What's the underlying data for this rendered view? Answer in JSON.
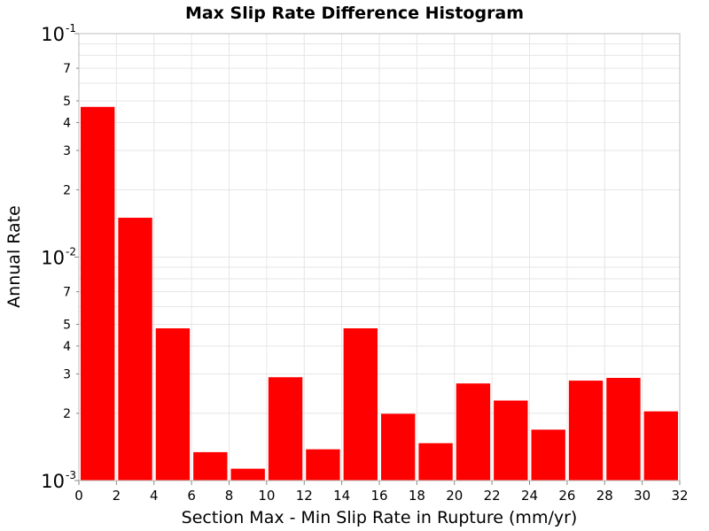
{
  "chart_data": {
    "type": "bar",
    "title": "Max Slip Rate Difference Histogram",
    "xlabel": "Section Max - Min Slip Rate in Rupture (mm/yr)",
    "ylabel": "Annual Rate",
    "xlim": [
      0,
      32
    ],
    "ylim": [
      0.001,
      0.1
    ],
    "yscale": "log",
    "bin_width": 2,
    "bar_color": "#ff0000",
    "grid": true,
    "x_ticks": [
      "0",
      "2",
      "4",
      "6",
      "8",
      "10",
      "12",
      "14",
      "16",
      "18",
      "20",
      "22",
      "24",
      "26",
      "28",
      "30",
      "32"
    ],
    "y_decade_ticks": [
      {
        "base": "10",
        "exp": "-1",
        "value": 0.1
      },
      {
        "base": "10",
        "exp": "-2",
        "value": 0.01
      },
      {
        "base": "10",
        "exp": "-3",
        "value": 0.001
      }
    ],
    "y_minor_tick_labels": [
      "7",
      "5",
      "4",
      "3",
      "2"
    ],
    "bins": [
      {
        "x": 1,
        "value": 0.047
      },
      {
        "x": 3,
        "value": 0.015
      },
      {
        "x": 5,
        "value": 0.0048
      },
      {
        "x": 7,
        "value": 0.00134
      },
      {
        "x": 9,
        "value": 0.00113
      },
      {
        "x": 11,
        "value": 0.0029
      },
      {
        "x": 13,
        "value": 0.00138
      },
      {
        "x": 15,
        "value": 0.0048
      },
      {
        "x": 17,
        "value": 0.00199
      },
      {
        "x": 19,
        "value": 0.00147
      },
      {
        "x": 21,
        "value": 0.00272
      },
      {
        "x": 23,
        "value": 0.00228
      },
      {
        "x": 25,
        "value": 0.00169
      },
      {
        "x": 27,
        "value": 0.0028
      },
      {
        "x": 29,
        "value": 0.00288
      },
      {
        "x": 31,
        "value": 0.00204
      }
    ]
  }
}
